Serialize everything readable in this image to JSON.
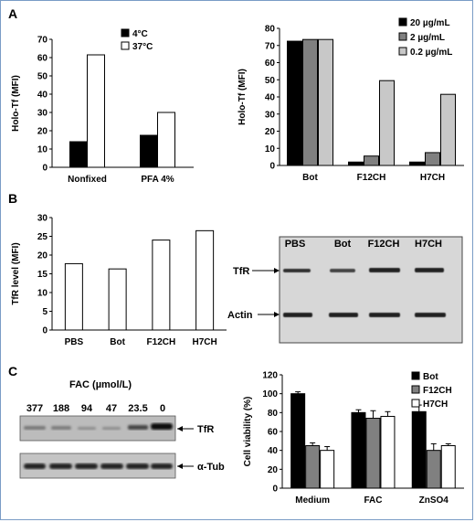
{
  "panels": {
    "a": "A",
    "b": "B",
    "c": "C"
  },
  "chart_data": [
    {
      "id": "A1",
      "type": "bar",
      "categories": [
        "Nonfixed",
        "PFA 4%"
      ],
      "series": [
        {
          "name": "4°C",
          "values": [
            14,
            17.5
          ],
          "color": "#000000"
        },
        {
          "name": "37°C",
          "values": [
            61.5,
            30
          ],
          "color": "#ffffff"
        }
      ],
      "ylabel": "Holo-Tf (MFI)",
      "ylim": [
        0,
        70
      ],
      "yticks": [
        0,
        10,
        20,
        30,
        40,
        50,
        60,
        70
      ],
      "legend": "top-right"
    },
    {
      "id": "A2",
      "type": "bar",
      "categories": [
        "Bot",
        "F12CH",
        "H7CH"
      ],
      "series": [
        {
          "name": "20 µg/mL",
          "values": [
            72.5,
            2,
            2
          ],
          "color": "#000000"
        },
        {
          "name": "2 µg/mL",
          "values": [
            73.5,
            5.5,
            7.5
          ],
          "color": "#808080"
        },
        {
          "name": "0.2 µg/mL",
          "values": [
            73.5,
            49.5,
            41.5
          ],
          "color": "#c8c8c8"
        }
      ],
      "ylabel": "Holo-Tf (MFI)",
      "ylim": [
        0,
        80
      ],
      "yticks": [
        0,
        10,
        20,
        30,
        40,
        50,
        60,
        70,
        80
      ],
      "legend": "top-right"
    },
    {
      "id": "B1",
      "type": "bar",
      "categories": [
        "PBS",
        "Bot",
        "F12CH",
        "H7CH"
      ],
      "series": [
        {
          "name": "",
          "values": [
            17.7,
            16.3,
            24,
            26.5
          ],
          "color": "#ffffff"
        }
      ],
      "ylabel": "TfR level (MFI)",
      "ylim": [
        0,
        30
      ],
      "yticks": [
        0,
        5,
        10,
        15,
        20,
        25,
        30
      ]
    },
    {
      "id": "C2",
      "type": "bar",
      "categories": [
        "Medium",
        "FAC",
        "ZnSO4"
      ],
      "series": [
        {
          "name": "Bot",
          "values": [
            100,
            80,
            81
          ],
          "errors": [
            2,
            3,
            7
          ],
          "color": "#000000"
        },
        {
          "name": "F12CH",
          "values": [
            45,
            74,
            40
          ],
          "errors": [
            3,
            8,
            7
          ],
          "color": "#808080"
        },
        {
          "name": "H7CH",
          "values": [
            40,
            76,
            45
          ],
          "errors": [
            4,
            5,
            2
          ],
          "color": "#ffffff"
        }
      ],
      "ylabel": "Cell viability (%)",
      "ylim": [
        0,
        120
      ],
      "yticks": [
        0,
        20,
        40,
        60,
        80,
        100,
        120
      ],
      "legend": "top-right"
    }
  ],
  "blot_b": {
    "lanes": [
      "PBS",
      "Bot",
      "F12CH",
      "H7CH"
    ],
    "rows": [
      "TfR",
      "Actin"
    ]
  },
  "blot_c": {
    "title": "FAC (µmol/L)",
    "lanes": [
      "377",
      "188",
      "94",
      "47",
      "23.5",
      "0"
    ],
    "rows": [
      "TfR",
      "α-Tub"
    ]
  }
}
